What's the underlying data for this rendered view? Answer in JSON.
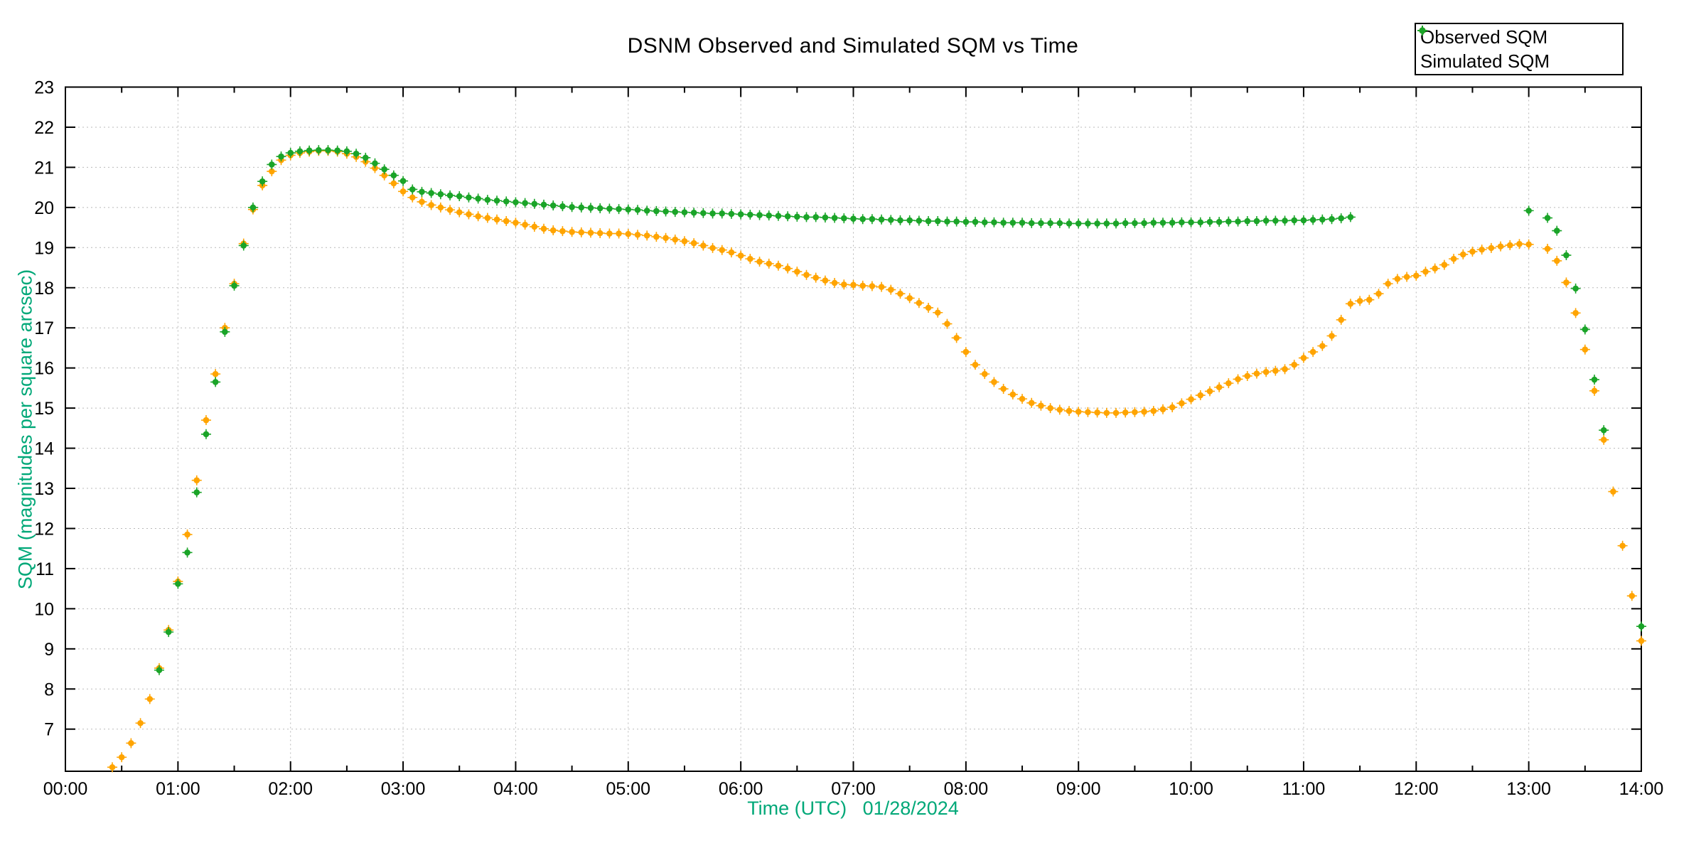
{
  "title": "DSNM Observed and Simulated SQM vs Time",
  "x_axis": {
    "label": "Time (UTC)   01/28/2024",
    "tick_labels": [
      "00:00",
      "01:00",
      "02:00",
      "03:00",
      "04:00",
      "05:00",
      "06:00",
      "07:00",
      "08:00",
      "09:00",
      "10:00",
      "11:00",
      "12:00",
      "13:00",
      "14:00"
    ],
    "tick_interval_minutes": 60,
    "minor_tick_minutes": 30,
    "start_minutes": 0,
    "end_minutes": 840
  },
  "y_axis": {
    "label": "SQM (magnitudes per square arcsec)",
    "ticks": [
      7,
      8,
      9,
      10,
      11,
      12,
      13,
      14,
      15,
      16,
      17,
      18,
      19,
      20,
      21,
      22,
      23
    ],
    "min": 5.95,
    "max": 23
  },
  "legend": {
    "position": "top-right",
    "entries": [
      {
        "label": "Observed SQM",
        "color": "#ffa400"
      },
      {
        "label": "Simulated SQM",
        "color": "#1aa428"
      }
    ]
  },
  "colors": {
    "observed": "#ffa400",
    "simulated": "#1aa428",
    "axis_label_text": "#00a878",
    "grid": "#b9b9b9",
    "border": "#000000",
    "background": "#ffffff",
    "title_text": "#000000"
  },
  "chart_data": {
    "type": "scatter",
    "title": "DSNM Observed and Simulated SQM vs Time",
    "xlabel": "Time (UTC)   01/28/2024",
    "ylabel": "SQM (magnitudes per square arcsec)",
    "x_unit": "minutes_after_00:00_UTC",
    "xlim_minutes": [
      0,
      840
    ],
    "ylim": [
      5.95,
      23
    ],
    "grid": true,
    "legend_position": "top-right",
    "sample_interval_minutes": 5,
    "series": [
      {
        "name": "Observed SQM",
        "color": "#ffa400",
        "points": [
          [
            25,
            6.05
          ],
          [
            30,
            6.3
          ],
          [
            35,
            6.65
          ],
          [
            40,
            7.15
          ],
          [
            45,
            7.75
          ],
          [
            50,
            8.52
          ],
          [
            55,
            9.47
          ],
          [
            60,
            10.68
          ],
          [
            65,
            11.85
          ],
          [
            70,
            13.2
          ],
          [
            75,
            14.7
          ],
          [
            80,
            15.85
          ],
          [
            85,
            17.0
          ],
          [
            90,
            18.1
          ],
          [
            95,
            19.1
          ],
          [
            100,
            19.95
          ],
          [
            105,
            20.55
          ],
          [
            110,
            20.9
          ],
          [
            115,
            21.18
          ],
          [
            120,
            21.3
          ],
          [
            125,
            21.36
          ],
          [
            130,
            21.39
          ],
          [
            135,
            21.41
          ],
          [
            140,
            21.41
          ],
          [
            145,
            21.39
          ],
          [
            150,
            21.34
          ],
          [
            155,
            21.26
          ],
          [
            160,
            21.14
          ],
          [
            165,
            20.98
          ],
          [
            170,
            20.8
          ],
          [
            175,
            20.6
          ],
          [
            180,
            20.4
          ],
          [
            185,
            20.25
          ],
          [
            190,
            20.14
          ],
          [
            195,
            20.06
          ],
          [
            200,
            20.0
          ],
          [
            205,
            19.94
          ],
          [
            210,
            19.88
          ],
          [
            215,
            19.83
          ],
          [
            220,
            19.78
          ],
          [
            225,
            19.74
          ],
          [
            230,
            19.7
          ],
          [
            235,
            19.66
          ],
          [
            240,
            19.62
          ],
          [
            245,
            19.57
          ],
          [
            250,
            19.52
          ],
          [
            255,
            19.47
          ],
          [
            260,
            19.43
          ],
          [
            265,
            19.41
          ],
          [
            270,
            19.39
          ],
          [
            275,
            19.38
          ],
          [
            280,
            19.37
          ],
          [
            285,
            19.36
          ],
          [
            290,
            19.35
          ],
          [
            295,
            19.35
          ],
          [
            300,
            19.34
          ],
          [
            305,
            19.32
          ],
          [
            310,
            19.3
          ],
          [
            315,
            19.27
          ],
          [
            320,
            19.24
          ],
          [
            325,
            19.2
          ],
          [
            330,
            19.16
          ],
          [
            335,
            19.11
          ],
          [
            340,
            19.05
          ],
          [
            345,
            18.99
          ],
          [
            350,
            18.94
          ],
          [
            355,
            18.88
          ],
          [
            360,
            18.8
          ],
          [
            365,
            18.72
          ],
          [
            370,
            18.65
          ],
          [
            375,
            18.6
          ],
          [
            380,
            18.55
          ],
          [
            385,
            18.48
          ],
          [
            390,
            18.4
          ],
          [
            395,
            18.32
          ],
          [
            400,
            18.25
          ],
          [
            405,
            18.18
          ],
          [
            410,
            18.12
          ],
          [
            415,
            18.08
          ],
          [
            420,
            18.07
          ],
          [
            425,
            18.05
          ],
          [
            430,
            18.04
          ],
          [
            435,
            18.02
          ],
          [
            440,
            17.95
          ],
          [
            445,
            17.85
          ],
          [
            450,
            17.74
          ],
          [
            455,
            17.62
          ],
          [
            460,
            17.5
          ],
          [
            465,
            17.38
          ],
          [
            470,
            17.1
          ],
          [
            475,
            16.75
          ],
          [
            480,
            16.4
          ],
          [
            485,
            16.08
          ],
          [
            490,
            15.85
          ],
          [
            495,
            15.65
          ],
          [
            500,
            15.48
          ],
          [
            505,
            15.34
          ],
          [
            510,
            15.23
          ],
          [
            515,
            15.13
          ],
          [
            520,
            15.06
          ],
          [
            525,
            15.0
          ],
          [
            530,
            14.96
          ],
          [
            535,
            14.93
          ],
          [
            540,
            14.91
          ],
          [
            545,
            14.9
          ],
          [
            550,
            14.89
          ],
          [
            555,
            14.88
          ],
          [
            560,
            14.88
          ],
          [
            565,
            14.89
          ],
          [
            570,
            14.9
          ],
          [
            575,
            14.91
          ],
          [
            580,
            14.93
          ],
          [
            585,
            14.97
          ],
          [
            590,
            15.02
          ],
          [
            595,
            15.12
          ],
          [
            600,
            15.22
          ],
          [
            605,
            15.32
          ],
          [
            610,
            15.42
          ],
          [
            615,
            15.52
          ],
          [
            620,
            15.62
          ],
          [
            625,
            15.72
          ],
          [
            630,
            15.8
          ],
          [
            635,
            15.86
          ],
          [
            640,
            15.9
          ],
          [
            645,
            15.93
          ],
          [
            650,
            15.97
          ],
          [
            655,
            16.08
          ],
          [
            660,
            16.25
          ],
          [
            665,
            16.4
          ],
          [
            670,
            16.55
          ],
          [
            675,
            16.8
          ],
          [
            680,
            17.2
          ],
          [
            685,
            17.6
          ],
          [
            690,
            17.67
          ],
          [
            695,
            17.7
          ],
          [
            700,
            17.85
          ],
          [
            705,
            18.1
          ],
          [
            710,
            18.22
          ],
          [
            715,
            18.27
          ],
          [
            720,
            18.3
          ],
          [
            725,
            18.4
          ],
          [
            730,
            18.48
          ],
          [
            735,
            18.57
          ],
          [
            740,
            18.72
          ],
          [
            745,
            18.83
          ],
          [
            750,
            18.9
          ],
          [
            755,
            18.95
          ],
          [
            760,
            18.99
          ],
          [
            765,
            19.03
          ],
          [
            770,
            19.06
          ],
          [
            775,
            19.09
          ],
          [
            780,
            19.08
          ],
          [
            790,
            18.97
          ],
          [
            795,
            18.67
          ],
          [
            800,
            18.13
          ],
          [
            805,
            17.37
          ],
          [
            810,
            16.46
          ],
          [
            815,
            15.43
          ],
          [
            820,
            14.21
          ],
          [
            825,
            12.92
          ],
          [
            830,
            11.57
          ],
          [
            835,
            10.32
          ],
          [
            840,
            9.2
          ]
        ]
      },
      {
        "name": "Simulated SQM",
        "color": "#1aa428",
        "points": [
          [
            50,
            8.47
          ],
          [
            55,
            9.42
          ],
          [
            60,
            10.62
          ],
          [
            65,
            11.4
          ],
          [
            70,
            12.9
          ],
          [
            75,
            14.35
          ],
          [
            80,
            15.65
          ],
          [
            85,
            16.9
          ],
          [
            90,
            18.05
          ],
          [
            95,
            19.05
          ],
          [
            100,
            20.0
          ],
          [
            105,
            20.65
          ],
          [
            110,
            21.07
          ],
          [
            115,
            21.27
          ],
          [
            120,
            21.36
          ],
          [
            125,
            21.4
          ],
          [
            130,
            21.42
          ],
          [
            135,
            21.43
          ],
          [
            140,
            21.43
          ],
          [
            145,
            21.42
          ],
          [
            150,
            21.4
          ],
          [
            155,
            21.34
          ],
          [
            160,
            21.24
          ],
          [
            165,
            21.1
          ],
          [
            170,
            20.95
          ],
          [
            175,
            20.8
          ],
          [
            180,
            20.66
          ],
          [
            185,
            20.45
          ],
          [
            190,
            20.39
          ],
          [
            195,
            20.36
          ],
          [
            200,
            20.33
          ],
          [
            205,
            20.3
          ],
          [
            210,
            20.28
          ],
          [
            215,
            20.25
          ],
          [
            220,
            20.22
          ],
          [
            225,
            20.19
          ],
          [
            230,
            20.17
          ],
          [
            235,
            20.15
          ],
          [
            240,
            20.13
          ],
          [
            245,
            20.11
          ],
          [
            250,
            20.09
          ],
          [
            255,
            20.07
          ],
          [
            260,
            20.05
          ],
          [
            265,
            20.03
          ],
          [
            270,
            20.01
          ],
          [
            275,
            20.0
          ],
          [
            280,
            19.99
          ],
          [
            285,
            19.98
          ],
          [
            290,
            19.97
          ],
          [
            295,
            19.96
          ],
          [
            300,
            19.95
          ],
          [
            305,
            19.94
          ],
          [
            310,
            19.92
          ],
          [
            315,
            19.91
          ],
          [
            320,
            19.9
          ],
          [
            325,
            19.89
          ],
          [
            330,
            19.88
          ],
          [
            335,
            19.87
          ],
          [
            340,
            19.86
          ],
          [
            345,
            19.85
          ],
          [
            350,
            19.85
          ],
          [
            355,
            19.84
          ],
          [
            360,
            19.83
          ],
          [
            365,
            19.82
          ],
          [
            370,
            19.81
          ],
          [
            375,
            19.8
          ],
          [
            380,
            19.79
          ],
          [
            385,
            19.78
          ],
          [
            390,
            19.77
          ],
          [
            395,
            19.76
          ],
          [
            400,
            19.76
          ],
          [
            405,
            19.75
          ],
          [
            410,
            19.74
          ],
          [
            415,
            19.73
          ],
          [
            420,
            19.72
          ],
          [
            425,
            19.71
          ],
          [
            430,
            19.71
          ],
          [
            435,
            19.7
          ],
          [
            440,
            19.69
          ],
          [
            445,
            19.68
          ],
          [
            450,
            19.68
          ],
          [
            455,
            19.67
          ],
          [
            460,
            19.66
          ],
          [
            465,
            19.66
          ],
          [
            470,
            19.65
          ],
          [
            475,
            19.65
          ],
          [
            480,
            19.64
          ],
          [
            485,
            19.64
          ],
          [
            490,
            19.63
          ],
          [
            495,
            19.63
          ],
          [
            500,
            19.62
          ],
          [
            505,
            19.62
          ],
          [
            510,
            19.62
          ],
          [
            515,
            19.61
          ],
          [
            520,
            19.61
          ],
          [
            525,
            19.61
          ],
          [
            530,
            19.61
          ],
          [
            535,
            19.6
          ],
          [
            540,
            19.6
          ],
          [
            545,
            19.6
          ],
          [
            550,
            19.6
          ],
          [
            555,
            19.6
          ],
          [
            560,
            19.6
          ],
          [
            565,
            19.61
          ],
          [
            570,
            19.61
          ],
          [
            575,
            19.61
          ],
          [
            580,
            19.62
          ],
          [
            585,
            19.62
          ],
          [
            590,
            19.62
          ],
          [
            595,
            19.63
          ],
          [
            600,
            19.63
          ],
          [
            605,
            19.63
          ],
          [
            610,
            19.64
          ],
          [
            615,
            19.64
          ],
          [
            620,
            19.65
          ],
          [
            625,
            19.65
          ],
          [
            630,
            19.66
          ],
          [
            635,
            19.66
          ],
          [
            640,
            19.67
          ],
          [
            645,
            19.67
          ],
          [
            650,
            19.67
          ],
          [
            655,
            19.68
          ],
          [
            660,
            19.68
          ],
          [
            665,
            19.69
          ],
          [
            670,
            19.7
          ],
          [
            675,
            19.71
          ],
          [
            680,
            19.73
          ],
          [
            685,
            19.76
          ],
          [
            780,
            19.92
          ],
          [
            790,
            19.74
          ],
          [
            795,
            19.42
          ],
          [
            800,
            18.81
          ],
          [
            805,
            17.98
          ],
          [
            810,
            16.96
          ],
          [
            815,
            15.71
          ],
          [
            820,
            14.45
          ],
          [
            840,
            9.56
          ]
        ]
      }
    ]
  }
}
